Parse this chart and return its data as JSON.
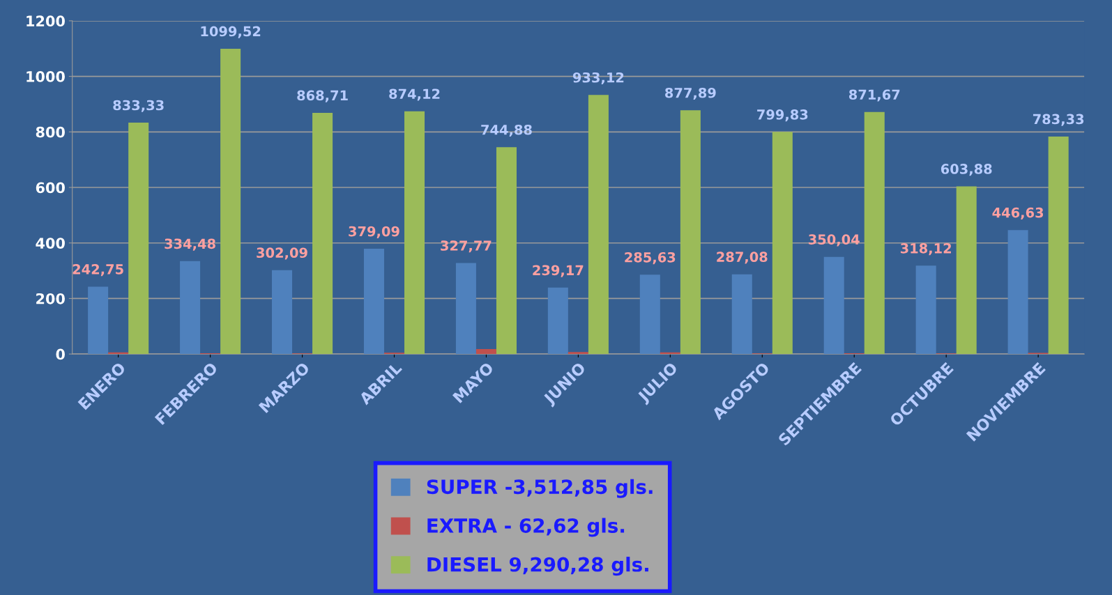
{
  "chart_data": {
    "type": "bar",
    "categories": [
      "ENERO",
      "FEBRERO",
      "MARZO",
      "ABRIL",
      "MAYO",
      "JUNIO",
      "JULIO",
      "AGOSTO",
      "SEPTIEMBRE",
      "OCTUBRE",
      "NOVIEMBRE"
    ],
    "series": [
      {
        "name": "SUPER -3,512,85 gls.",
        "color": "#4f81bd",
        "values": [
          242.75,
          334.48,
          302.09,
          379.09,
          327.77,
          239.17,
          285.63,
          287.08,
          350.04,
          318.12,
          446.63
        ],
        "value_labels": [
          "242,75",
          "334,48",
          "302,09",
          "379,09",
          "327,77",
          "239,17",
          "285,63",
          "287,08",
          "350,04",
          "318,12",
          "446,63"
        ]
      },
      {
        "name": "EXTRA - 62,62 gls.",
        "color": "#c0504d",
        "values": [
          6,
          3,
          2,
          5,
          18,
          7,
          6,
          2,
          3,
          2,
          4
        ]
      },
      {
        "name": "DIESEL 9,290,28 gls.",
        "color": "#9bbb59",
        "values": [
          833.33,
          1099.52,
          868.71,
          874.12,
          744.88,
          933.12,
          877.89,
          799.83,
          871.67,
          603.88,
          783.33
        ],
        "value_labels": [
          "833,33",
          "1099,52",
          "868,71",
          "874,12",
          "744,88",
          "933,12",
          "877,89",
          "799,83",
          "871,67",
          "603,88",
          "783,33"
        ]
      }
    ],
    "ylim": [
      0,
      1200
    ],
    "yticks": [
      0,
      200,
      400,
      600,
      800,
      1000,
      1200
    ],
    "grid": "y",
    "legend": "bottom"
  }
}
